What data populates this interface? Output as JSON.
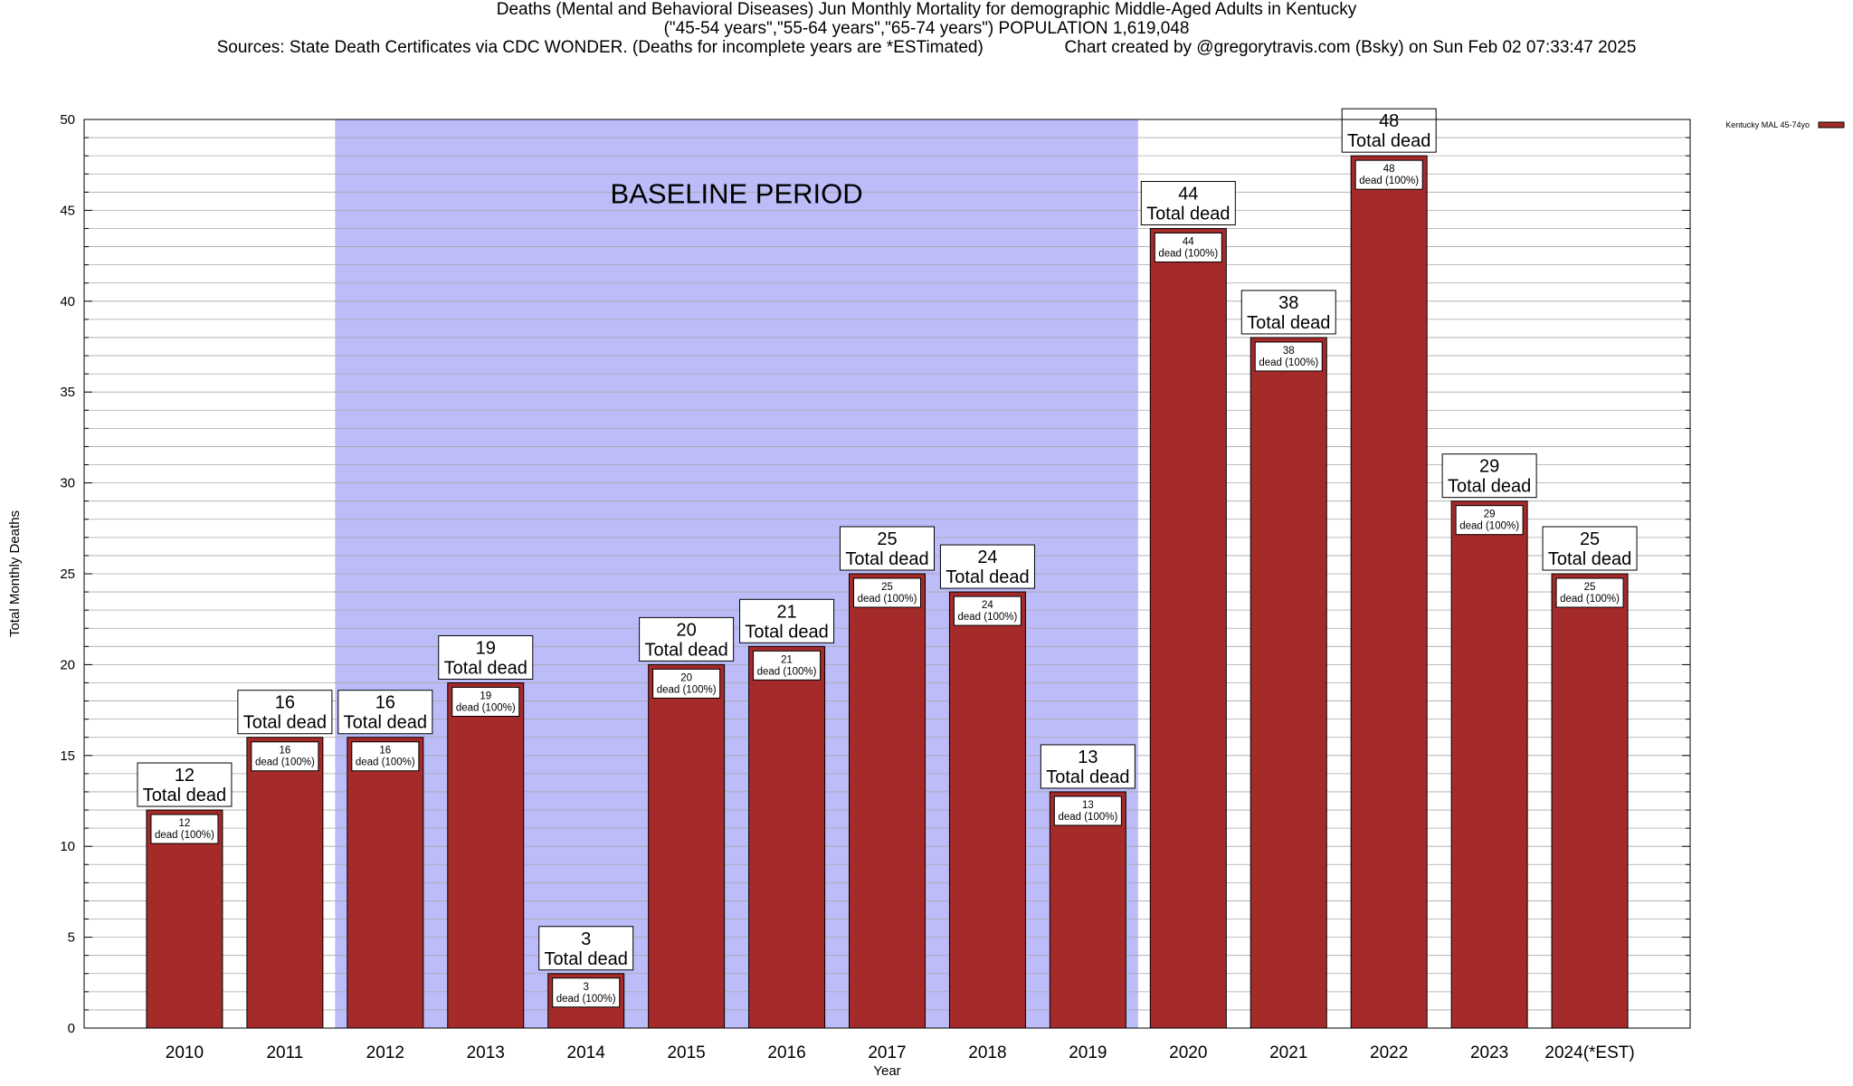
{
  "header": {
    "title_line1": "Deaths (Mental and Behavioral Diseases) Jun Monthly Mortality for demographic Middle-Aged Adults in Kentucky",
    "title_line2": "(\"45-54 years\",\"55-64 years\",\"65-74 years\") POPULATION 1,619,048",
    "title_line3": "Sources: State Death Certificates via CDC WONDER. (Deaths for incomplete years are *ESTimated)                 Chart created by @gregorytravis.com (Bsky) on Sun Feb 02 07:33:47 2025"
  },
  "chart_data": {
    "type": "bar",
    "title": "Deaths (Mental and Behavioral Diseases) Jun Monthly Mortality for demographic Middle-Aged Adults in Kentucky",
    "xlabel": "Year",
    "ylabel": "Total Monthly Deaths",
    "ylim": [
      0,
      50
    ],
    "yticks": [
      0,
      5,
      10,
      15,
      20,
      25,
      30,
      35,
      40,
      45,
      50
    ],
    "grid": "horizontal minor lines every 1",
    "legend_position": "top-right",
    "categories": [
      "2010",
      "2011",
      "2012",
      "2013",
      "2014",
      "2015",
      "2016",
      "2017",
      "2018",
      "2019",
      "2020",
      "2021",
      "2022",
      "2023",
      "2024(*EST)"
    ],
    "series": [
      {
        "name": "Kentucky MAL 45-74yo",
        "color": "#a52a2a",
        "values": [
          12,
          16,
          16,
          19,
          3,
          20,
          21,
          25,
          24,
          13,
          44,
          38,
          48,
          29,
          25
        ]
      }
    ],
    "total_label_suffix": "Total dead",
    "inner_label_suffix": "dead (100%)",
    "baseline": {
      "label": "BASELINE PERIOD",
      "from": "2012",
      "to": "2019",
      "color": "#bcbcf9"
    }
  }
}
